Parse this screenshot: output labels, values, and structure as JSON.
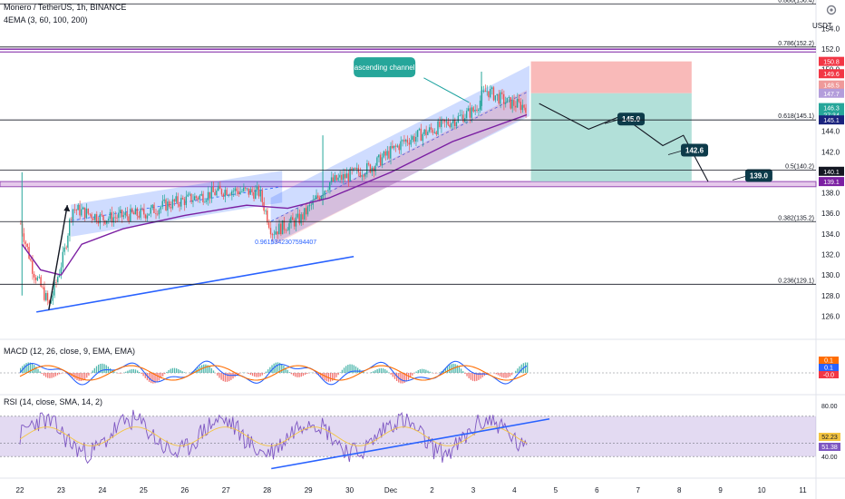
{
  "header": {
    "symbol_title": "Monero / TetherUS, 1h, BINANCE",
    "indicator_label": "4EMA (3, 60, 100, 200)",
    "currency": "USDT"
  },
  "macd_legend": "MACD (12, 26, close, 9, EMA, EMA)",
  "rsi_legend": "RSI (14, close, SMA, 14, 2)",
  "colors": {
    "up": "#26a69a",
    "down": "#ef5350",
    "channel": "#2962ff",
    "fib": "#131722",
    "ema": "#7b1fa2",
    "rsi_band": "#7e57c2",
    "signal": "#ff6d00",
    "macd": "#2962ff",
    "target_bg": "#26a69a",
    "stop_bg": "#f23645"
  },
  "chart_data": [
    {
      "type": "candlestick",
      "title": "Monero / TetherUS, 1h, BINANCE",
      "ylabel": "USDT",
      "x_ticks": [
        "22",
        "23",
        "24",
        "25",
        "26",
        "27",
        "28",
        "29",
        "30",
        "Dec",
        "2",
        "3",
        "4",
        "5",
        "6",
        "7",
        "8",
        "9",
        "10",
        "11"
      ],
      "y_ticks": [
        126.0,
        128.0,
        130.0,
        132.0,
        134.0,
        136.0,
        138.0,
        140.0,
        142.0,
        144.0,
        146.0,
        148.0,
        150.0,
        152.0,
        154.0
      ],
      "ylim": [
        124.8,
        156.6
      ],
      "price_anchors": [
        {
          "day": 0.0,
          "price": 135.0
        },
        {
          "day": 0.3,
          "price": 130.5
        },
        {
          "day": 0.7,
          "price": 127.0
        },
        {
          "day": 1.05,
          "price": 132.0
        },
        {
          "day": 1.25,
          "price": 136.5
        },
        {
          "day": 2.0,
          "price": 135.5
        },
        {
          "day": 3.0,
          "price": 136.0
        },
        {
          "day": 3.5,
          "price": 136.8
        },
        {
          "day": 4.2,
          "price": 137.5
        },
        {
          "day": 5.0,
          "price": 138.3
        },
        {
          "day": 5.8,
          "price": 138.0
        },
        {
          "day": 6.1,
          "price": 134.2
        },
        {
          "day": 6.8,
          "price": 135.5
        },
        {
          "day": 7.5,
          "price": 139.0
        },
        {
          "day": 8.5,
          "price": 140.5
        },
        {
          "day": 9.3,
          "price": 143.0
        },
        {
          "day": 10.2,
          "price": 144.5
        },
        {
          "day": 11.0,
          "price": 146.0
        },
        {
          "day": 11.3,
          "price": 148.0
        },
        {
          "day": 11.8,
          "price": 146.8
        },
        {
          "day": 12.3,
          "price": 146.4
        }
      ],
      "ema_anchors": [
        {
          "day": 0.05,
          "price": 133.0
        },
        {
          "day": 0.5,
          "price": 130.5
        },
        {
          "day": 1.0,
          "price": 130.0
        },
        {
          "day": 1.5,
          "price": 133.0
        },
        {
          "day": 2.5,
          "price": 134.5
        },
        {
          "day": 4.0,
          "price": 135.8
        },
        {
          "day": 5.5,
          "price": 136.8
        },
        {
          "day": 6.5,
          "price": 136.5
        },
        {
          "day": 7.5,
          "price": 137.5
        },
        {
          "day": 9.0,
          "price": 140.0
        },
        {
          "day": 10.5,
          "price": 143.0
        },
        {
          "day": 12.3,
          "price": 145.6
        }
      ],
      "fib_levels": [
        {
          "label": "0.886(156.4)",
          "price": 156.4
        },
        {
          "label": "0.786(152.2)",
          "price": 152.2
        },
        {
          "label": "0.618(145.1)",
          "price": 145.1
        },
        {
          "label": "0.5(140.2)",
          "price": 140.2
        },
        {
          "label": "0.382(135.2)",
          "price": 135.2
        },
        {
          "label": "0.236(129.1)",
          "price": 129.1
        }
      ],
      "axis_price_labels": [
        "150.8",
        "149.6",
        "148.5",
        "147.7",
        "146.3",
        "27:34",
        "145.1",
        "140.1",
        "139.1"
      ],
      "last_price": 146.3,
      "countdown": "27:34",
      "annotations": {
        "channel_label": "ascending channel",
        "fib_value": "0.9615342307594407",
        "targets": [
          "145.0",
          "142.6",
          "139.0"
        ]
      },
      "trade": {
        "entry": 147.7,
        "stop": 150.8,
        "target": 139.1
      },
      "resistance_zone": [
        138.6,
        139.1
      ],
      "purple_level": 151.9,
      "channels": [
        {
          "name": "channel-1",
          "top_left": {
            "day": 1.25,
            "price": 136.8
          },
          "top_right": {
            "day": 6.35,
            "price": 140.1
          },
          "bottom_left": {
            "day": 1.25,
            "price": 133.8
          },
          "bottom_right": {
            "day": 6.35,
            "price": 137.1
          }
        },
        {
          "name": "channel-2",
          "top_left": {
            "day": 6.1,
            "price": 137.5
          },
          "top_right": {
            "day": 12.35,
            "price": 150.3
          },
          "bottom_left": {
            "day": 6.1,
            "price": 133.0
          },
          "bottom_right": {
            "day": 12.35,
            "price": 145.5
          }
        }
      ]
    },
    {
      "type": "line",
      "title": "MACD (12, 26, close, 9, EMA, EMA)",
      "y_axis_labels": [
        "0.1",
        "0.1",
        "-0.0"
      ],
      "zero_line": true
    },
    {
      "type": "line",
      "title": "RSI (14, close, SMA, 14, 2)",
      "y_ticks": [
        "80.00",
        "40.00"
      ],
      "value_labels": [
        "52.23",
        "51.38"
      ],
      "band": [
        40,
        70
      ]
    }
  ]
}
